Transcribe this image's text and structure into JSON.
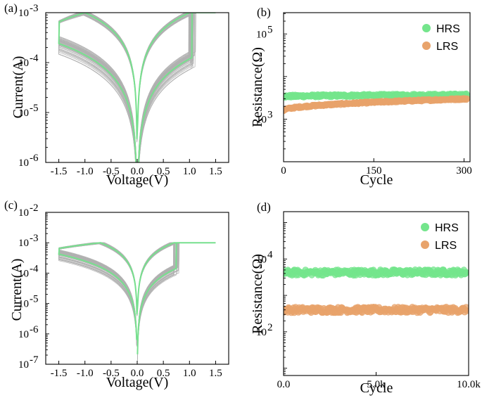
{
  "colors": {
    "gray": "#b0b0b0",
    "green": "#77e08e",
    "hrs": "#74e58c",
    "lrs": "#e8a36b"
  },
  "chart_data": [
    {
      "id": "a",
      "panel_label": "(a)",
      "type": "line",
      "xlabel": "Voltage(V)",
      "ylabel": "Current(A)",
      "xlim": [
        -1.75,
        1.75
      ],
      "ylim_log10": [
        -6,
        -3
      ],
      "yscale": "log",
      "x_ticks": [
        -1.5,
        -1.0,
        -0.5,
        0.0,
        0.5,
        1.0,
        1.5
      ],
      "x_tick_labels": [
        "-1.5",
        "-1.0",
        "-0.5",
        "0.0",
        "0.5",
        "1.0",
        "1.5"
      ],
      "y_ticks_log10": [
        -6,
        -5,
        -4,
        -3
      ],
      "y_tick_labels": [
        "10",
        "10",
        "10",
        "10"
      ],
      "y_tick_exponents": [
        "-6",
        "-5",
        "-4",
        "-3"
      ],
      "params": {
        "compliance": 0.001,
        "vset": 1.05,
        "vreset": -1.0,
        "vmax": 1.5,
        "vmin": -1.5,
        "hrs_at_max": 0.0002,
        "lrs_at_reset": 0.001,
        "vzero": 0.0
      },
      "series": [
        {
          "name": "cycles",
          "color_key": "gray",
          "count": 40
        },
        {
          "name": "highlighted cycle",
          "color_key": "green"
        }
      ]
    },
    {
      "id": "b",
      "panel_label": "(b)",
      "type": "scatter",
      "xlabel": "Cycle",
      "ylabel": "Resistance(Ω)",
      "xlim": [
        0,
        310
      ],
      "ylim_log10": [
        2.0,
        5.5
      ],
      "yscale": "log",
      "x_ticks": [
        0,
        150,
        300
      ],
      "x_tick_labels": [
        "0",
        "150",
        "300"
      ],
      "y_ticks_log10": [
        3,
        5
      ],
      "y_tick_labels": [
        "10",
        "10"
      ],
      "y_tick_exponents": [
        "3",
        "5"
      ],
      "series": [
        {
          "name": "HRS",
          "color_key": "hrs",
          "n": 300,
          "x_max": 305,
          "start": 3400,
          "end": 3700,
          "jitter": 0.03
        },
        {
          "name": "LRS",
          "color_key": "lrs",
          "n": 300,
          "x_max": 305,
          "start": 1600,
          "end": 3000,
          "jitter": 0.02
        }
      ]
    },
    {
      "id": "c",
      "panel_label": "(c)",
      "type": "line",
      "xlabel": "Voltage(V)",
      "ylabel": "Current(A)",
      "xlim": [
        -1.75,
        1.75
      ],
      "ylim_log10": [
        -7,
        -2
      ],
      "yscale": "log",
      "x_ticks": [
        -1.5,
        -1.0,
        -0.5,
        0.0,
        0.5,
        1.0,
        1.5
      ],
      "x_tick_labels": [
        "-1.5",
        "-1.0",
        "-0.5",
        "0.0",
        "0.5",
        "1.0",
        "1.5"
      ],
      "y_ticks_log10": [
        -7,
        -6,
        -5,
        -4,
        -3,
        -2
      ],
      "y_tick_labels": [
        "10",
        "10",
        "10",
        "10",
        "10",
        "10"
      ],
      "y_tick_exponents": [
        "-7",
        "-6",
        "-5",
        "-4",
        "-3",
        "-2"
      ],
      "params": {
        "compliance": 0.001,
        "vset": 0.75,
        "vreset": -0.7,
        "vmax": 1.5,
        "vmin": -1.5,
        "hrs_at_max": 0.00035,
        "lrs_at_reset": 0.001,
        "vzero": 0.0
      },
      "series": [
        {
          "name": "cycles",
          "color_key": "gray",
          "count": 40
        },
        {
          "name": "highlighted cycle",
          "color_key": "green"
        }
      ]
    },
    {
      "id": "d",
      "panel_label": "(d)",
      "type": "scatter",
      "xlabel": "Cycle",
      "ylabel": "Resistance(Ω)",
      "xlim": [
        0,
        10000
      ],
      "ylim_log10": [
        0.8,
        5.3
      ],
      "yscale": "log",
      "x_ticks": [
        0,
        5000,
        10000
      ],
      "x_tick_labels": [
        "0.0",
        "5.0k",
        "10.0k"
      ],
      "y_ticks_log10": [
        2,
        4
      ],
      "y_tick_labels": [
        "10",
        "10"
      ],
      "y_tick_exponents": [
        "2",
        "4"
      ],
      "series": [
        {
          "name": "HRS",
          "color_key": "hrs",
          "n": 260,
          "x_max": 9900,
          "start": 4200,
          "end": 4300,
          "jitter": 0.08
        },
        {
          "name": "LRS",
          "color_key": "lrs",
          "n": 260,
          "x_max": 9900,
          "start": 400,
          "end": 400,
          "jitter": 0.08
        }
      ]
    }
  ]
}
